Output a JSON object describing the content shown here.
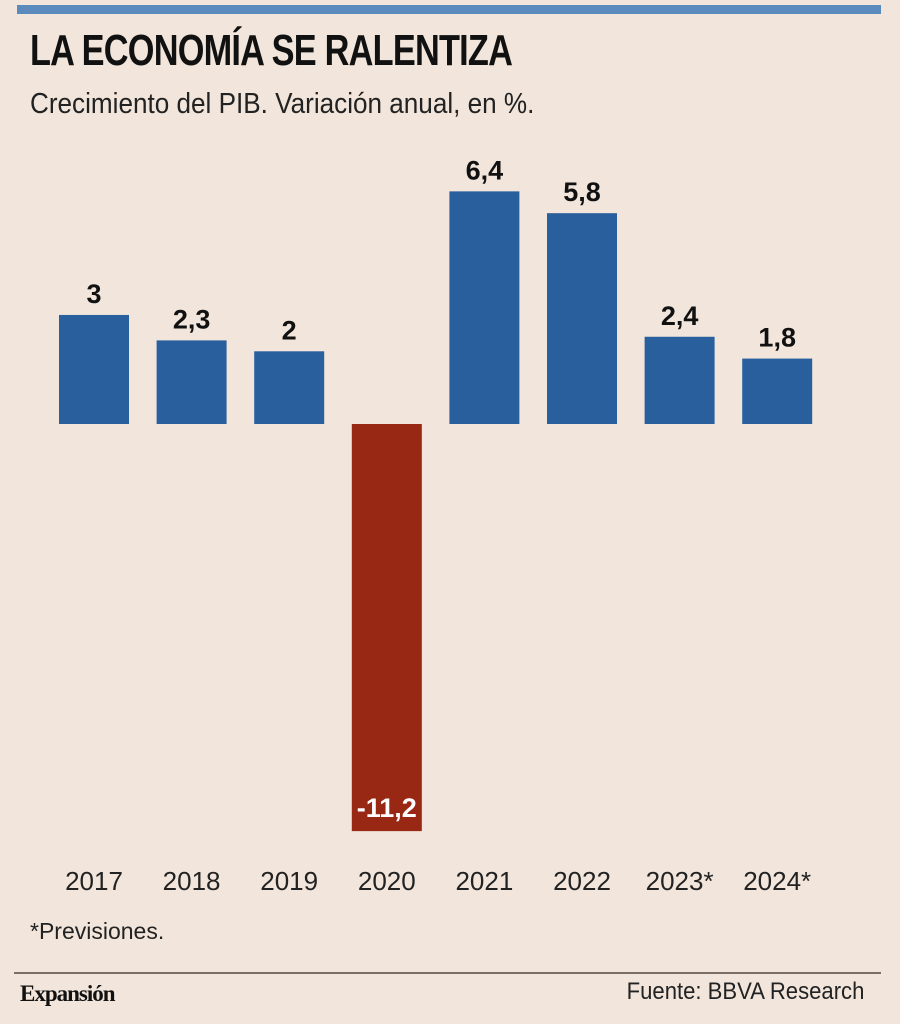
{
  "header": {
    "title": "LA ECONOMÍA SE RALENTIZA",
    "subtitle": "Crecimiento del PIB. Variación anual, en %."
  },
  "footer": {
    "note": "*Previsiones.",
    "brand": "Expansión",
    "source": "Fuente: BBVA Research"
  },
  "colors": {
    "accent_bar": "#5b8bbd",
    "positive": "#2a5f9e",
    "negative": "#982714",
    "background": "#f2e6dc"
  },
  "chart_data": {
    "type": "bar",
    "title": "LA ECONOMÍA SE RALENTIZA",
    "subtitle": "Crecimiento del PIB. Variación anual, en %.",
    "xlabel": "",
    "ylabel": "",
    "categories": [
      "2017",
      "2018",
      "2019",
      "2020",
      "2021",
      "2022",
      "2023*",
      "2024*"
    ],
    "values": [
      3,
      2.3,
      2,
      -11.2,
      6.4,
      5.8,
      2.4,
      1.8
    ],
    "data_labels": [
      "3",
      "2,3",
      "2",
      "-11,2",
      "6,4",
      "5,8",
      "2,4",
      "1,8"
    ],
    "ylim": [
      -11.2,
      6.4
    ],
    "grid": false,
    "legend": "none",
    "annotations": [
      "*Previsiones."
    ]
  }
}
